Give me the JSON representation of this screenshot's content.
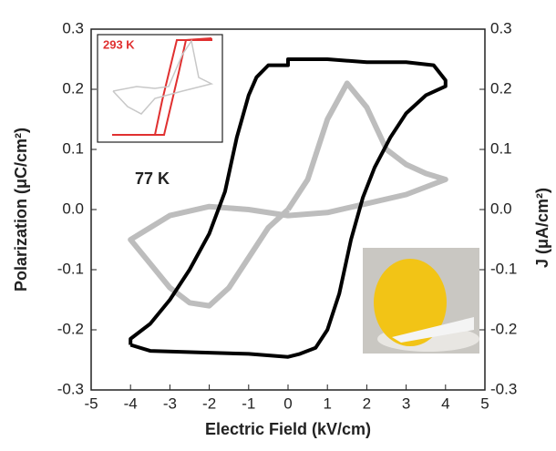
{
  "chart_data": {
    "type": "line",
    "xlabel": "Electric Field (kV/cm)",
    "ylabel": "Polarization (μC/cm²)",
    "y2label": "J (μA/cm²)",
    "annotations": [
      "77 K",
      "293 K"
    ],
    "xlim": [
      -5,
      5
    ],
    "xticks": [
      -5,
      -4,
      -3,
      -2,
      -1,
      0,
      1,
      2,
      3,
      4,
      5
    ],
    "ylim": [
      -0.3,
      0.3
    ],
    "yticks": [
      -0.3,
      -0.2,
      -0.1,
      {
        "value": 0,
        "label": "0.0"
      },
      0.1,
      0.2,
      0.3
    ],
    "y2lim": [
      -0.3,
      0.3
    ],
    "y2ticks": [
      -0.3,
      -0.2,
      -0.1,
      {
        "value": 0,
        "label": "0.0"
      },
      0.1,
      0.2,
      0.3
    ],
    "series": [
      {
        "color": "#000000",
        "axis": "y",
        "x": [
          -4,
          -3.5,
          -2,
          -1,
          0,
          0.3,
          0.7,
          1,
          1.3,
          1.6,
          1.9,
          2.2,
          2.6,
          3,
          3.5,
          4,
          4,
          3.7,
          3,
          2,
          1,
          0,
          0,
          -0.5,
          -0.8,
          -1,
          -1.3,
          -1.6,
          -2,
          -2.5,
          -3,
          -3.5,
          -4,
          -4
        ],
        "values": [
          -0.225,
          -0.235,
          -0.238,
          -0.24,
          -0.245,
          -0.24,
          -0.23,
          -0.2,
          -0.14,
          -0.05,
          0.02,
          0.07,
          0.12,
          0.16,
          0.19,
          0.205,
          0.215,
          0.24,
          0.245,
          0.245,
          0.25,
          0.25,
          0.24,
          0.24,
          0.22,
          0.19,
          0.12,
          0.03,
          -0.04,
          -0.1,
          -0.15,
          -0.19,
          -0.215,
          -0.225
        ]
      },
      {
        "color": "#bdbdbd",
        "axis": "y2",
        "x": [
          0,
          0.5,
          1,
          1.5,
          2,
          2.5,
          3,
          3.5,
          4,
          3,
          2,
          1,
          0,
          -1,
          -2,
          -3,
          -4,
          -3.5,
          -3,
          -2.5,
          -2,
          -1.5,
          -1,
          -0.5,
          0
        ],
        "values": [
          0,
          0.05,
          0.15,
          0.21,
          0.17,
          0.1,
          0.075,
          0.06,
          0.05,
          0.025,
          0.01,
          -0.005,
          -0.01,
          0,
          0.005,
          -0.01,
          -0.05,
          -0.09,
          -0.13,
          -0.155,
          -0.16,
          -0.13,
          -0.08,
          -0.03,
          0
        ]
      }
    ]
  }
}
